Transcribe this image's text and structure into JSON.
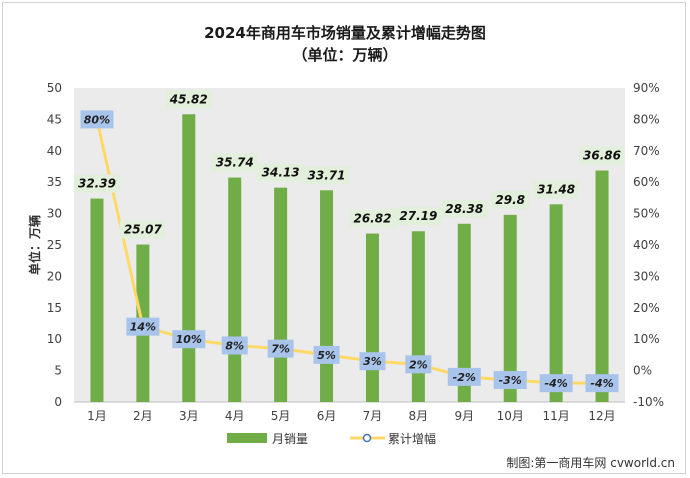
{
  "chart_data": {
    "type": "bar",
    "title": "2024年商用车市场销量及累计增幅走势图",
    "subtitle": "（单位：万辆）",
    "ylabel": "单位：万辆",
    "categories": [
      "1月",
      "2月",
      "3月",
      "4月",
      "5月",
      "6月",
      "7月",
      "8月",
      "9月",
      "10月",
      "11月",
      "12月"
    ],
    "series": [
      {
        "name": "月销量",
        "type": "bar",
        "axis": "left",
        "color": "#70ad47",
        "values": [
          32.39,
          25.07,
          45.82,
          35.74,
          34.13,
          33.71,
          26.82,
          27.19,
          28.38,
          29.8,
          31.48,
          36.86
        ],
        "labels": [
          "32.39",
          "25.07",
          "45.82",
          "35.74",
          "34.13",
          "33.71",
          "26.82",
          "27.19",
          "28.38",
          "29.8",
          "31.48",
          "36.86"
        ]
      },
      {
        "name": "累计增幅",
        "type": "line",
        "axis": "right",
        "color": "#ffd966",
        "values": [
          80,
          14,
          10,
          8,
          7,
          5,
          3,
          2,
          -2,
          -3,
          -4,
          -4
        ],
        "labels": [
          "80%",
          "14%",
          "10%",
          "8%",
          "7%",
          "5%",
          "3%",
          "2%",
          "-2%",
          "-3%",
          "-4%",
          "-4%"
        ]
      }
    ],
    "y_left": {
      "min": 0,
      "max": 50,
      "step": 5,
      "ticks": [
        "0",
        "5",
        "10",
        "15",
        "20",
        "25",
        "30",
        "35",
        "40",
        "45",
        "50"
      ]
    },
    "y_right": {
      "min": -10,
      "max": 90,
      "step": 10,
      "ticks": [
        "-10%",
        "0%",
        "10%",
        "20%",
        "30%",
        "40%",
        "50%",
        "60%",
        "70%",
        "80%",
        "90%"
      ]
    },
    "legend_position": "bottom",
    "grid": false
  },
  "source": "制图:第一商用车网 cvworld.cn"
}
